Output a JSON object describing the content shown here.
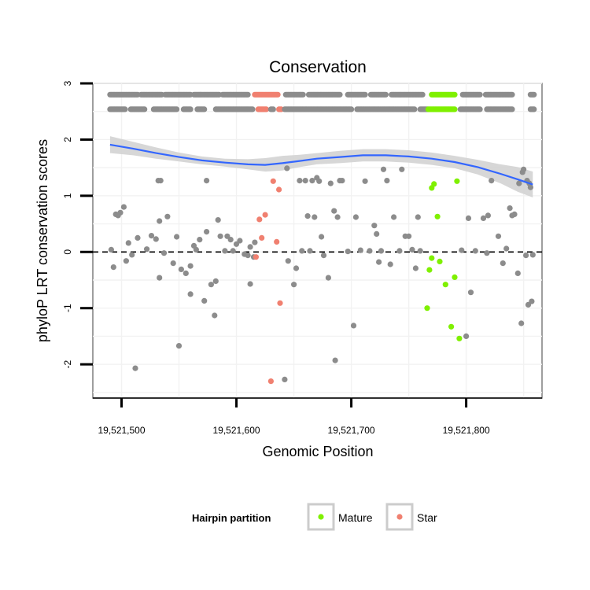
{
  "chart_data": {
    "type": "scatter",
    "title": "Conservation",
    "xlabel": "Genomic Position",
    "ylabel": "phyloP LRT conservation scores",
    "xlim": [
      19521475,
      19521866
    ],
    "ylim": [
      -2.6,
      3.0
    ],
    "x_ticks": [
      19521500,
      19521600,
      19521700,
      19521800
    ],
    "x_tick_labels": [
      "19,521,500",
      "19,521,600",
      "19,521,700",
      "19,521,800"
    ],
    "y_ticks": [
      -2,
      -1,
      0,
      1,
      2,
      3
    ],
    "y_tick_labels": [
      "-2",
      "-1",
      "0",
      "1",
      "2",
      "3"
    ],
    "grid": true,
    "reference_line": {
      "y": 0,
      "style": "dashed"
    },
    "colors": {
      "other": "#8c8c8c",
      "Mature": "#7ff000",
      "Star": "#f08070",
      "smooth_line": "#3366ff",
      "smooth_band": "#d3d3d3"
    },
    "legend": {
      "title": "Hairpin partition",
      "placement": "bottom",
      "entries": [
        {
          "label": "Mature",
          "color": "#7ff000"
        },
        {
          "label": "Star",
          "color": "#f08070"
        }
      ]
    },
    "smooth": {
      "x": [
        19521490,
        19521510,
        19521530,
        19521550,
        19521570,
        19521590,
        19521610,
        19521625,
        19521640,
        19521655,
        19521670,
        19521690,
        19521710,
        19521730,
        19521750,
        19521770,
        19521790,
        19521810,
        19521830,
        19521845,
        19521858
      ],
      "y": [
        1.91,
        1.84,
        1.76,
        1.69,
        1.63,
        1.59,
        1.56,
        1.55,
        1.58,
        1.62,
        1.66,
        1.69,
        1.72,
        1.72,
        1.7,
        1.66,
        1.6,
        1.51,
        1.39,
        1.29,
        1.2
      ],
      "ymin": [
        1.76,
        1.72,
        1.66,
        1.61,
        1.56,
        1.52,
        1.47,
        1.43,
        1.45,
        1.51,
        1.56,
        1.58,
        1.61,
        1.61,
        1.59,
        1.55,
        1.49,
        1.38,
        1.22,
        1.07,
        0.97
      ],
      "ymax": [
        2.06,
        1.96,
        1.86,
        1.77,
        1.7,
        1.66,
        1.65,
        1.67,
        1.71,
        1.73,
        1.76,
        1.8,
        1.83,
        1.83,
        1.81,
        1.77,
        1.71,
        1.64,
        1.56,
        1.51,
        1.43
      ]
    },
    "band_rows": [
      {
        "y": 2.8,
        "ranges": [
          {
            "from": 19521490,
            "to": 19521514,
            "group": "other"
          },
          {
            "from": 19521517,
            "to": 19521535,
            "group": "other"
          },
          {
            "from": 19521538,
            "to": 19521560,
            "group": "other"
          },
          {
            "from": 19521563,
            "to": 19521585,
            "group": "other"
          },
          {
            "from": 19521588,
            "to": 19521610,
            "group": "other"
          },
          {
            "from": 19521616,
            "to": 19521636,
            "group": "Star"
          },
          {
            "from": 19521643,
            "to": 19521658,
            "group": "other"
          },
          {
            "from": 19521663,
            "to": 19521690,
            "group": "other"
          },
          {
            "from": 19521697,
            "to": 19521712,
            "group": "other"
          },
          {
            "from": 19521717,
            "to": 19521730,
            "group": "other"
          },
          {
            "from": 19521735,
            "to": 19521762,
            "group": "other"
          },
          {
            "from": 19521770,
            "to": 19521790,
            "group": "Mature"
          },
          {
            "from": 19521797,
            "to": 19521812,
            "group": "other"
          },
          {
            "from": 19521817,
            "to": 19521840,
            "group": "other"
          },
          {
            "from": 19521856,
            "to": 19521859,
            "group": "other"
          }
        ]
      },
      {
        "y": 2.54,
        "ranges": [
          {
            "from": 19521490,
            "to": 19521503,
            "group": "other"
          },
          {
            "from": 19521508,
            "to": 19521520,
            "group": "other"
          },
          {
            "from": 19521528,
            "to": 19521548,
            "group": "other"
          },
          {
            "from": 19521554,
            "to": 19521560,
            "group": "other"
          },
          {
            "from": 19521566,
            "to": 19521572,
            "group": "other"
          },
          {
            "from": 19521582,
            "to": 19521614,
            "group": "other"
          },
          {
            "from": 19521619,
            "to": 19521626,
            "group": "Star"
          },
          {
            "from": 19521630,
            "to": 19521632,
            "group": "other"
          },
          {
            "from": 19521637,
            "to": 19521639,
            "group": "Star"
          },
          {
            "from": 19521642,
            "to": 19521700,
            "group": "other"
          },
          {
            "from": 19521705,
            "to": 19521755,
            "group": "other"
          },
          {
            "from": 19521760,
            "to": 19521766,
            "group": "other"
          },
          {
            "from": 19521767,
            "to": 19521790,
            "group": "Mature"
          },
          {
            "from": 19521795,
            "to": 19521812,
            "group": "other"
          },
          {
            "from": 19521818,
            "to": 19521840,
            "group": "other"
          },
          {
            "from": 19521856,
            "to": 19521859,
            "group": "other"
          }
        ]
      }
    ],
    "points": [
      [
        19521491,
        0.04,
        "other"
      ],
      [
        19521493,
        -0.27,
        "other"
      ],
      [
        19521495,
        0.67,
        "other"
      ],
      [
        19521497,
        0.65,
        "other"
      ],
      [
        19521499,
        0.7,
        "other"
      ],
      [
        19521502,
        0.8,
        "other"
      ],
      [
        19521504,
        -0.16,
        "other"
      ],
      [
        19521506,
        0.16,
        "other"
      ],
      [
        19521509,
        -0.05,
        "other"
      ],
      [
        19521512,
        -2.07,
        "other"
      ],
      [
        19521514,
        0.25,
        "other"
      ],
      [
        19521522,
        0.05,
        "other"
      ],
      [
        19521526,
        0.29,
        "other"
      ],
      [
        19521530,
        0.23,
        "other"
      ],
      [
        19521532,
        1.27,
        "other"
      ],
      [
        19521534,
        1.27,
        "other"
      ],
      [
        19521533,
        0.55,
        "other"
      ],
      [
        19521533,
        -0.46,
        "other"
      ],
      [
        19521537,
        -0.02,
        "other"
      ],
      [
        19521540,
        0.63,
        "other"
      ],
      [
        19521545,
        -0.2,
        "other"
      ],
      [
        19521548,
        0.27,
        "other"
      ],
      [
        19521550,
        -1.67,
        "other"
      ],
      [
        19521552,
        -0.31,
        "other"
      ],
      [
        19521556,
        -0.38,
        "other"
      ],
      [
        19521560,
        -0.25,
        "other"
      ],
      [
        19521563,
        0.11,
        "other"
      ],
      [
        19521560,
        -0.75,
        "other"
      ],
      [
        19521565,
        0.04,
        "other"
      ],
      [
        19521568,
        0.22,
        "other"
      ],
      [
        19521572,
        -0.87,
        "other"
      ],
      [
        19521574,
        1.27,
        "other"
      ],
      [
        19521574,
        0.36,
        "other"
      ],
      [
        19521578,
        -0.58,
        "other"
      ],
      [
        19521581,
        -1.13,
        "other"
      ],
      [
        19521582,
        -0.52,
        "other"
      ],
      [
        19521586,
        0.28,
        "other"
      ],
      [
        19521584,
        0.57,
        "other"
      ],
      [
        19521590,
        0.02,
        "other"
      ],
      [
        19521592,
        0.28,
        "other"
      ],
      [
        19521595,
        0.22,
        "other"
      ],
      [
        19521597,
        0.02,
        "other"
      ],
      [
        19521600,
        0.14,
        "other"
      ],
      [
        19521603,
        0.2,
        "other"
      ],
      [
        19521607,
        -0.04,
        "other"
      ],
      [
        19521610,
        -0.06,
        "other"
      ],
      [
        19521612,
        -0.57,
        "other"
      ],
      [
        19521612,
        0.09,
        "other"
      ],
      [
        19521615,
        -0.09,
        "other"
      ],
      [
        19521616,
        0.17,
        "other"
      ],
      [
        19521620,
        0.58,
        "Star"
      ],
      [
        19521622,
        0.25,
        "Star"
      ],
      [
        19521625,
        0.66,
        "Star"
      ],
      [
        19521630,
        -2.3,
        "Star"
      ],
      [
        19521632,
        1.26,
        "Star"
      ],
      [
        19521635,
        0.18,
        "Star"
      ],
      [
        19521637,
        1.11,
        "Star"
      ],
      [
        19521638,
        -0.91,
        "Star"
      ],
      [
        19521617,
        -0.09,
        "Star"
      ],
      [
        19521642,
        -2.27,
        "other"
      ],
      [
        19521644,
        1.49,
        "other"
      ],
      [
        19521645,
        -0.16,
        "other"
      ],
      [
        19521650,
        -0.58,
        "other"
      ],
      [
        19521652,
        -0.29,
        "other"
      ],
      [
        19521655,
        1.27,
        "other"
      ],
      [
        19521657,
        0.02,
        "other"
      ],
      [
        19521660,
        1.27,
        "other"
      ],
      [
        19521662,
        0.64,
        "other"
      ],
      [
        19521664,
        0.02,
        "other"
      ],
      [
        19521666,
        1.27,
        "other"
      ],
      [
        19521668,
        0.62,
        "other"
      ],
      [
        19521670,
        1.32,
        "other"
      ],
      [
        19521672,
        1.26,
        "other"
      ],
      [
        19521674,
        0.27,
        "other"
      ],
      [
        19521676,
        -0.06,
        "other"
      ],
      [
        19521680,
        -0.46,
        "other"
      ],
      [
        19521682,
        1.22,
        "other"
      ],
      [
        19521685,
        0.73,
        "other"
      ],
      [
        19521686,
        -1.93,
        "other"
      ],
      [
        19521688,
        0.62,
        "other"
      ],
      [
        19521690,
        1.27,
        "other"
      ],
      [
        19521692,
        1.27,
        "other"
      ],
      [
        19521697,
        0.01,
        "other"
      ],
      [
        19521702,
        -1.31,
        "other"
      ],
      [
        19521704,
        0.62,
        "other"
      ],
      [
        19521708,
        0.03,
        "other"
      ],
      [
        19521712,
        1.26,
        "other"
      ],
      [
        19521716,
        0.02,
        "other"
      ],
      [
        19521720,
        0.47,
        "other"
      ],
      [
        19521722,
        0.32,
        "other"
      ],
      [
        19521724,
        -0.18,
        "other"
      ],
      [
        19521726,
        0.02,
        "other"
      ],
      [
        19521728,
        1.47,
        "other"
      ],
      [
        19521731,
        1.27,
        "other"
      ],
      [
        19521734,
        -0.22,
        "other"
      ],
      [
        19521737,
        0.62,
        "other"
      ],
      [
        19521742,
        0.02,
        "other"
      ],
      [
        19521744,
        1.47,
        "other"
      ],
      [
        19521747,
        0.28,
        "other"
      ],
      [
        19521750,
        0.28,
        "other"
      ],
      [
        19521753,
        0.04,
        "other"
      ],
      [
        19521756,
        -0.29,
        "other"
      ],
      [
        19521758,
        0.62,
        "other"
      ],
      [
        19521760,
        0.02,
        "other"
      ],
      [
        19521766,
        -1.0,
        "Mature"
      ],
      [
        19521768,
        -0.32,
        "Mature"
      ],
      [
        19521770,
        1.14,
        "Mature"
      ],
      [
        19521772,
        1.21,
        "Mature"
      ],
      [
        19521775,
        0.63,
        "Mature"
      ],
      [
        19521770,
        -0.11,
        "Mature"
      ],
      [
        19521777,
        -0.17,
        "Mature"
      ],
      [
        19521782,
        -0.58,
        "Mature"
      ],
      [
        19521787,
        -1.33,
        "Mature"
      ],
      [
        19521790,
        -0.45,
        "Mature"
      ],
      [
        19521792,
        1.26,
        "Mature"
      ],
      [
        19521794,
        -1.54,
        "Mature"
      ],
      [
        19521796,
        0.03,
        "other"
      ],
      [
        19521800,
        -1.5,
        "other"
      ],
      [
        19521802,
        0.6,
        "other"
      ],
      [
        19521804,
        -0.72,
        "other"
      ],
      [
        19521808,
        0.02,
        "other"
      ],
      [
        19521815,
        0.6,
        "other"
      ],
      [
        19521818,
        -0.02,
        "other"
      ],
      [
        19521819,
        0.65,
        "other"
      ],
      [
        19521822,
        1.27,
        "other"
      ],
      [
        19521828,
        0.28,
        "other"
      ],
      [
        19521832,
        -0.2,
        "other"
      ],
      [
        19521835,
        0.06,
        "other"
      ],
      [
        19521838,
        0.78,
        "other"
      ],
      [
        19521840,
        0.65,
        "other"
      ],
      [
        19521842,
        0.67,
        "other"
      ],
      [
        19521845,
        -0.38,
        "other"
      ],
      [
        19521846,
        1.22,
        "other"
      ],
      [
        19521848,
        -1.27,
        "other"
      ],
      [
        19521849,
        1.42,
        "other"
      ],
      [
        19521850,
        1.47,
        "other"
      ],
      [
        19521852,
        -0.06,
        "other"
      ],
      [
        19521853,
        1.27,
        "other"
      ],
      [
        19521854,
        -0.94,
        "other"
      ],
      [
        19521855,
        1.22,
        "other"
      ],
      [
        19521856,
        1.15,
        "other"
      ],
      [
        19521857,
        -0.88,
        "other"
      ],
      [
        19521858,
        -0.05,
        "other"
      ]
    ]
  }
}
